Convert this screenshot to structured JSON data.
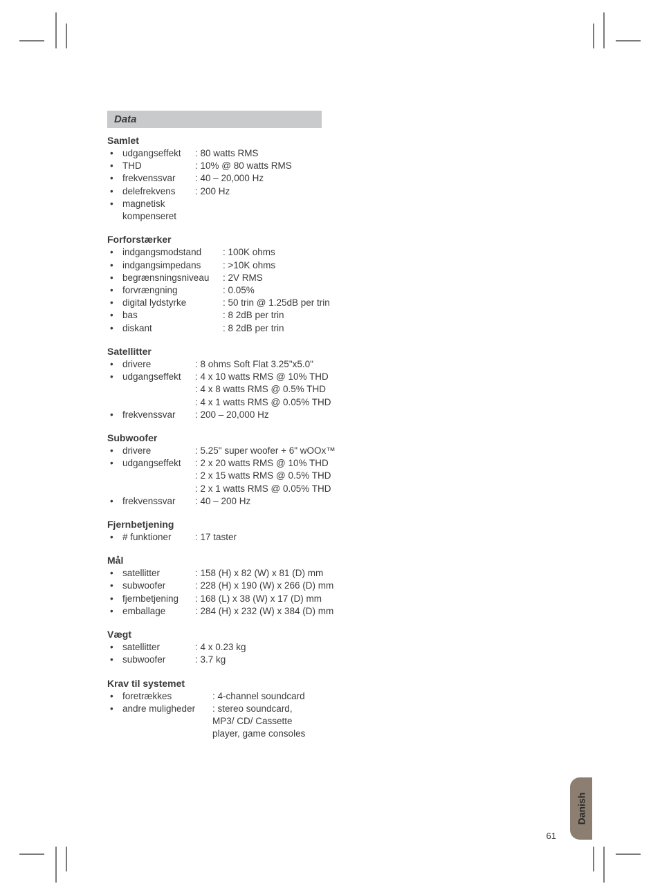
{
  "header_title": "Data",
  "page_number": "61",
  "language_tab": "Danish",
  "colors": {
    "header_bg": "#c9cacb",
    "text": "#3a3a3a",
    "tab_bg": "#8c7f71",
    "crop": "#7a7a7a",
    "page_bg": "#ffffff"
  },
  "typography": {
    "body_fontsize": 13.5,
    "title_fontsize": 14,
    "header_fontsize": 15
  },
  "sections": [
    {
      "title": "Samlet",
      "label_width": 105,
      "items": [
        {
          "label": "udgangseffekt",
          "value": ": 80 watts RMS"
        },
        {
          "label": "THD",
          "value": ": 10% @ 80 watts RMS"
        },
        {
          "label": "frekvenssvar",
          "value": ": 40 – 20,000 Hz"
        },
        {
          "label": "delefrekvens",
          "value": ": 200 Hz"
        },
        {
          "label": "magnetisk kompenseret",
          "value": ""
        }
      ]
    },
    {
      "title": "Forforstærker",
      "label_width": 145,
      "items": [
        {
          "label": "indgangsmodstand",
          "value": ": 100K ohms"
        },
        {
          "label": "indgangsimpedans",
          "value": ": >10K ohms"
        },
        {
          "label": "begrænsningsniveau",
          "value": ": 2V RMS"
        },
        {
          "label": "forvrængning",
          "value": ": 0.05%"
        },
        {
          "label": "digital lydstyrke",
          "value": ": 50 trin @ 1.25dB per trin"
        },
        {
          "label": "bas",
          "value": ": 8  2dB per trin"
        },
        {
          "label": "diskant",
          "value": ": 8  2dB per trin"
        }
      ]
    },
    {
      "title": "Satellitter",
      "label_width": 105,
      "items": [
        {
          "label": "drivere",
          "value": ": 8 ohms Soft Flat 3.25\"x5.0\""
        },
        {
          "label": "udgangseffekt",
          "value": ": 4 x 10 watts RMS @ 10% THD",
          "continuation": [
            ": 4 x 8 watts RMS @ 0.5% THD",
            ": 4 x 1 watts RMS @ 0.05% THD"
          ]
        },
        {
          "label": "frekvenssvar",
          "value": ": 200 – 20,000 Hz"
        }
      ]
    },
    {
      "title": "Subwoofer",
      "label_width": 105,
      "items": [
        {
          "label": "drivere",
          "value": ": 5.25\" super woofer + 6\" wOOx™"
        },
        {
          "label": "udgangseffekt",
          "value": ": 2 x 20 watts RMS @ 10% THD",
          "continuation": [
            ": 2 x 15 watts RMS @ 0.5% THD",
            ": 2 x 1 watts RMS @ 0.05% THD"
          ]
        },
        {
          "label": "frekvenssvar",
          "value": ": 40 – 200 Hz"
        }
      ]
    },
    {
      "title": "Fjernbetjening",
      "label_width": 105,
      "items": [
        {
          "label": "#  funktioner",
          "value": ": 17 taster"
        }
      ]
    },
    {
      "title": "Mål",
      "label_width": 105,
      "items": [
        {
          "label": "satellitter",
          "value": ": 158 (H) x  82 (W) x  81 (D) mm"
        },
        {
          "label": "subwoofer",
          "value": ": 228 (H) x 190 (W) x 266 (D) mm"
        },
        {
          "label": "fjernbetjening",
          "value": ": 168  (L) x  38 (W) x  17 (D) mm"
        },
        {
          "label": "emballage",
          "value": ": 284 (H) x 232 (W) x 384 (D) mm"
        }
      ]
    },
    {
      "title": "Vægt",
      "label_width": 105,
      "items": [
        {
          "label": "satellitter",
          "value": ": 4 x 0.23 kg"
        },
        {
          "label": "subwoofer",
          "value": ": 3.7 kg"
        }
      ]
    },
    {
      "title": "Krav til systemet",
      "label_width": 130,
      "items": [
        {
          "label": "foretrækkes",
          "value": ": 4-channel soundcard"
        },
        {
          "label": "andre muligheder",
          "value": ": stereo soundcard,",
          "continuation_indent": 148,
          "continuation": [
            "MP3/ CD/ Cassette",
            "player, game consoles"
          ]
        }
      ]
    }
  ]
}
